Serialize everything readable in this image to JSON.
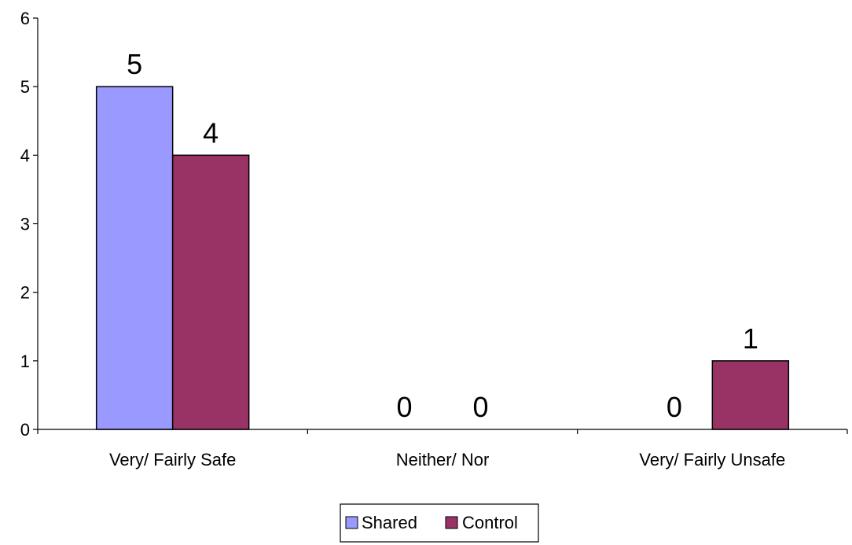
{
  "chart_data": {
    "type": "bar",
    "title": "",
    "xlabel": "",
    "ylabel": "",
    "categories": [
      "Very/ Fairly Safe",
      "Neither/ Nor",
      "Very/ Fairly Unsafe"
    ],
    "series": [
      {
        "name": "Shared",
        "values": [
          5,
          0,
          0
        ],
        "color": "#9999ff"
      },
      {
        "name": "Control",
        "values": [
          4,
          0,
          1
        ],
        "color": "#993366"
      }
    ],
    "ylim": [
      0,
      6
    ],
    "yticks": [
      0,
      1,
      2,
      3,
      4,
      5,
      6
    ],
    "grid": false,
    "legend_position": "bottom-center",
    "data_labels": true
  }
}
